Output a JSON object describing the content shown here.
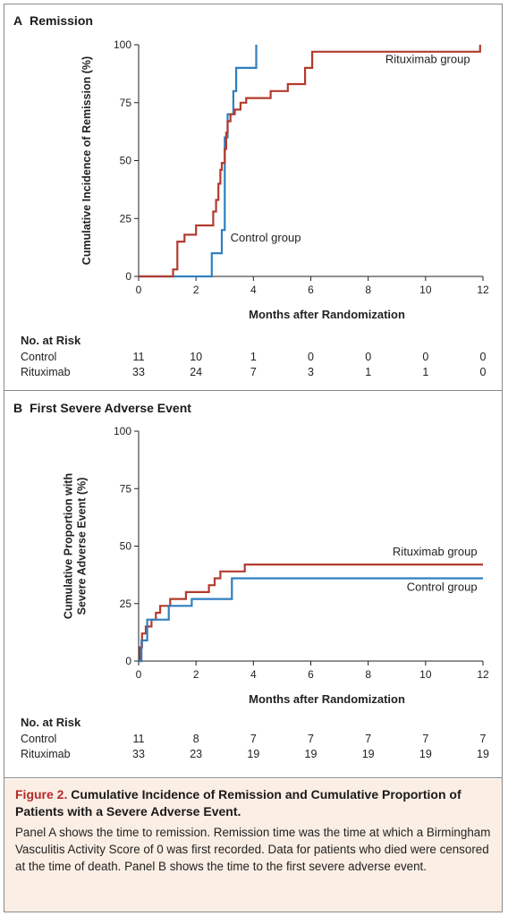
{
  "panels": [
    {
      "letter": "A",
      "title": "Remission",
      "ylabel_lines": [
        "Cumulative Incidence of Remission (%)"
      ],
      "xlabel": "Months after Randomization",
      "risk_header": "No. at Risk",
      "risk_rows": [
        {
          "label": "Control",
          "values": [
            "11",
            "10",
            "1",
            "0",
            "0",
            "0",
            "0"
          ]
        },
        {
          "label": "Rituximab",
          "values": [
            "33",
            "24",
            "7",
            "3",
            "1",
            "1",
            "0"
          ]
        }
      ]
    },
    {
      "letter": "B",
      "title": "First Severe Adverse Event",
      "ylabel_lines": [
        "Cumulative Proportion with",
        "Severe Adverse Event (%)"
      ],
      "xlabel": "Months after Randomization",
      "risk_header": "No. at Risk",
      "risk_rows": [
        {
          "label": "Control",
          "values": [
            "11",
            "8",
            "7",
            "7",
            "7",
            "7",
            "7"
          ]
        },
        {
          "label": "Rituximab",
          "values": [
            "33",
            "23",
            "19",
            "19",
            "19",
            "19",
            "19"
          ]
        }
      ]
    }
  ],
  "chart_data": [
    {
      "type": "line",
      "step": true,
      "title": "Remission",
      "xlabel": "Months after Randomization",
      "ylabel": "Cumulative Incidence of Remission (%)",
      "xlim": [
        0,
        12
      ],
      "ylim": [
        0,
        100
      ],
      "xticks": [
        0,
        2,
        4,
        6,
        8,
        10,
        12
      ],
      "yticks": [
        0,
        25,
        50,
        75,
        100
      ],
      "series": [
        {
          "name": "Control group",
          "color": "#2f7fc0",
          "label_at": [
            3.2,
            15
          ],
          "x": [
            0,
            2.55,
            2.55,
            2.9,
            2.9,
            3.0,
            3.0,
            3.1,
            3.1,
            3.3,
            3.3,
            3.4,
            3.4,
            4.1,
            4.1
          ],
          "y": [
            0,
            0,
            10,
            10,
            20,
            20,
            60,
            60,
            70,
            70,
            80,
            80,
            90,
            90,
            100
          ]
        },
        {
          "name": "Rituximab group",
          "color": "#b23b2e",
          "label_at": [
            8.6,
            92
          ],
          "x": [
            0,
            1.2,
            1.2,
            1.35,
            1.35,
            1.6,
            1.6,
            2.0,
            2.0,
            2.6,
            2.6,
            2.7,
            2.7,
            2.78,
            2.78,
            2.85,
            2.85,
            2.9,
            2.9,
            3.0,
            3.0,
            3.05,
            3.05,
            3.1,
            3.1,
            3.2,
            3.2,
            3.35,
            3.35,
            3.55,
            3.55,
            3.75,
            3.75,
            4.6,
            4.6,
            5.2,
            5.2,
            5.8,
            5.8,
            6.05,
            6.05,
            11.9,
            11.9
          ],
          "y": [
            0,
            0,
            3,
            3,
            15,
            15,
            18,
            18,
            22,
            22,
            28,
            28,
            33,
            33,
            40,
            40,
            46,
            46,
            49,
            49,
            55,
            55,
            62,
            62,
            67,
            67,
            70,
            70,
            72,
            72,
            75,
            75,
            77,
            77,
            80,
            80,
            83,
            83,
            90,
            90,
            97,
            97,
            100
          ]
        }
      ]
    },
    {
      "type": "line",
      "step": true,
      "title": "First Severe Adverse Event",
      "xlabel": "Months after Randomization",
      "ylabel": "Cumulative Proportion with Severe Adverse Event (%)",
      "xlim": [
        0,
        12
      ],
      "ylim": [
        0,
        100
      ],
      "xticks": [
        0,
        2,
        4,
        6,
        8,
        10,
        12
      ],
      "yticks": [
        0,
        25,
        50,
        75,
        100
      ],
      "series": [
        {
          "name": "Rituximab group",
          "color": "#b23b2e",
          "label_at": [
            11.8,
            46
          ],
          "x": [
            0,
            0.05,
            0.05,
            0.12,
            0.12,
            0.25,
            0.25,
            0.45,
            0.45,
            0.6,
            0.6,
            0.75,
            0.75,
            1.1,
            1.1,
            1.65,
            1.65,
            2.45,
            2.45,
            2.65,
            2.65,
            2.85,
            2.85,
            3.7,
            3.7,
            12
          ],
          "y": [
            0,
            0,
            6,
            6,
            12,
            12,
            15,
            15,
            18,
            18,
            21,
            21,
            24,
            24,
            27,
            27,
            30,
            30,
            33,
            33,
            36,
            36,
            39,
            39,
            42,
            42
          ]
        },
        {
          "name": "Control group",
          "color": "#2f7fc0",
          "label_at": [
            11.8,
            30.5
          ],
          "x": [
            0,
            0.1,
            0.1,
            0.3,
            0.3,
            0.6,
            0.6,
            1.05,
            1.05,
            1.85,
            1.85,
            3.25,
            3.25,
            12
          ],
          "y": [
            0,
            0,
            9,
            9,
            18,
            18,
            18,
            18,
            24,
            24,
            27,
            27,
            36,
            36
          ]
        }
      ]
    }
  ],
  "caption": {
    "label": "Figure 2.",
    "title": "Cumulative Incidence of Remission and Cumulative Proportion of Patients with a Severe Adverse Event.",
    "body": "Panel A shows the time to remission. Remission time was the time at which a Birmingham Vasculitis Activity Score of 0 was first recorded. Data for patients who died were censored at the time of death. Panel B shows the time to the first severe adverse event."
  }
}
